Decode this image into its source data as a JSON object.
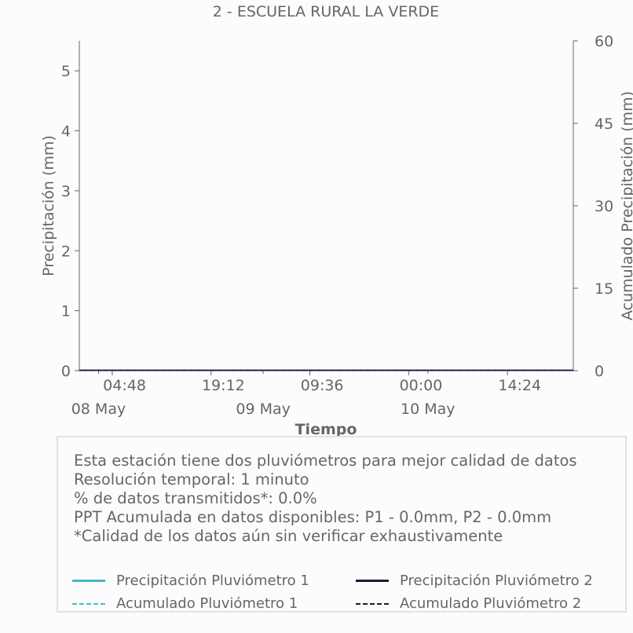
{
  "colors": {
    "p1": "#4ab5c4",
    "p2": "#1a1a36",
    "axis": "#666666"
  },
  "chart_data": {
    "type": "line",
    "title": "2 - ESCUELA RURAL LA VERDE",
    "xlabel": "Tiempo",
    "ylabel": "Precipitación (mm)",
    "y2label": "Acumulado Precipitación (mm)",
    "ylim": [
      0,
      5.5
    ],
    "y2lim": [
      0,
      60
    ],
    "yticks": [
      0,
      1,
      2,
      3,
      4,
      5
    ],
    "y2ticks": [
      0,
      15,
      30,
      45,
      60
    ],
    "xlim_hours": [
      0,
      72
    ],
    "xticks": [
      {
        "h": 4.8,
        "time": "04:48",
        "date": ""
      },
      {
        "h": 19.2,
        "time": "19:12",
        "date": ""
      },
      {
        "h": 33.6,
        "time": "09:36",
        "date": ""
      },
      {
        "h": 48,
        "time": "00:00",
        "date": ""
      },
      {
        "h": 62.4,
        "time": "14:24",
        "date": ""
      }
    ],
    "date_ticks": [
      {
        "h": 2.8,
        "label": "08 May"
      },
      {
        "h": 26.8,
        "label": "09 May"
      },
      {
        "h": 50.8,
        "label": "10 May"
      }
    ],
    "grid": false,
    "series": [
      {
        "name": "Precipitación Pluviómetro 1",
        "axis": "left",
        "style": "solid",
        "color": "#4ab5c4",
        "x": [
          0,
          72
        ],
        "values": [
          0,
          0
        ]
      },
      {
        "name": "Precipitación Pluviómetro 2",
        "axis": "left",
        "style": "solid",
        "color": "#1a1a36",
        "x": [
          0,
          72
        ],
        "values": [
          0,
          0
        ]
      },
      {
        "name": "Acumulado Pluviómetro 1",
        "axis": "right",
        "style": "dashed",
        "color": "#4ab5c4",
        "x": [
          0,
          72
        ],
        "values": [
          0,
          0
        ]
      },
      {
        "name": "Acumulado Pluviómetro 2",
        "axis": "right",
        "style": "dashed",
        "color": "#1a1a36",
        "x": [
          0,
          72
        ],
        "values": [
          0,
          0
        ]
      }
    ]
  },
  "info": {
    "lines": [
      "Esta estación tiene dos pluviómetros para mejor calidad de datos",
      "Resolución temporal: 1 minuto",
      "% de datos transmitidos*: 0.0%",
      "PPT Acumulada en datos disponibles: P1 - 0.0mm, P2 - 0.0mm",
      "*Calidad de los datos aún sin verificar exhaustivamente"
    ]
  }
}
